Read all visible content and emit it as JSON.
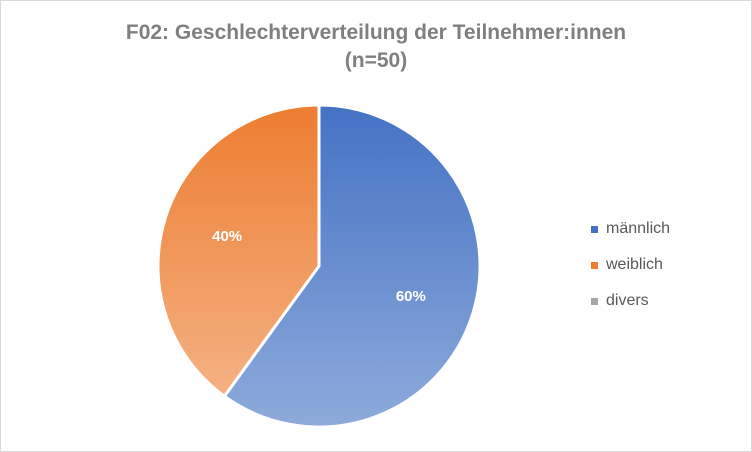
{
  "chart_data": {
    "type": "pie",
    "title": [
      "F02: Geschlechterverteilung der Teilnehmer:innen",
      "(n=50)"
    ],
    "categories": [
      "männlich",
      "weiblich",
      "divers"
    ],
    "values": [
      60,
      40,
      0
    ],
    "value_labels": [
      "60%",
      "40%",
      ""
    ],
    "colors": [
      "#4472c4",
      "#ed7d31",
      "#a5a5a5"
    ],
    "legend": {
      "position": "right",
      "entries": [
        "männlich",
        "weiblich",
        "divers"
      ]
    }
  }
}
